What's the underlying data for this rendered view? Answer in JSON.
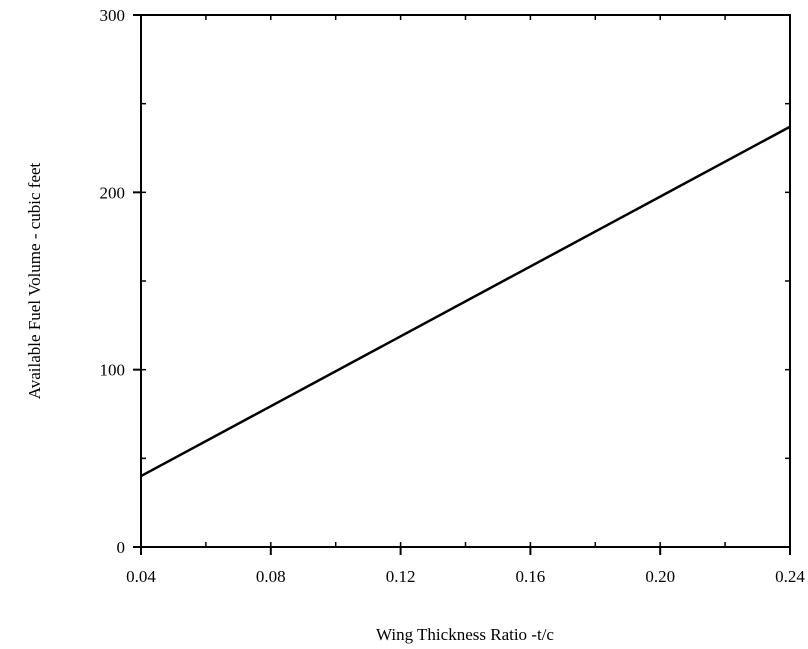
{
  "chart_data": {
    "type": "line",
    "title": "",
    "xlabel": "Wing Thickness Ratio -t/c",
    "ylabel": "Available Fuel Volume - cubic feet",
    "xlim": [
      0.04,
      0.24
    ],
    "ylim": [
      0,
      300
    ],
    "x_ticks": [
      "0.04",
      "0.08",
      "0.12",
      "0.16",
      "0.20",
      "0.24"
    ],
    "y_ticks": [
      "0",
      "100",
      "200",
      "300"
    ],
    "x_minor_step": 0.02,
    "y_minor_step": 50,
    "grid": false,
    "legend": "none",
    "series": [
      {
        "x": [
          0.04,
          0.24
        ],
        "y": [
          40,
          237
        ]
      }
    ],
    "colors": {
      "line": "#000000",
      "axis": "#000000"
    }
  }
}
